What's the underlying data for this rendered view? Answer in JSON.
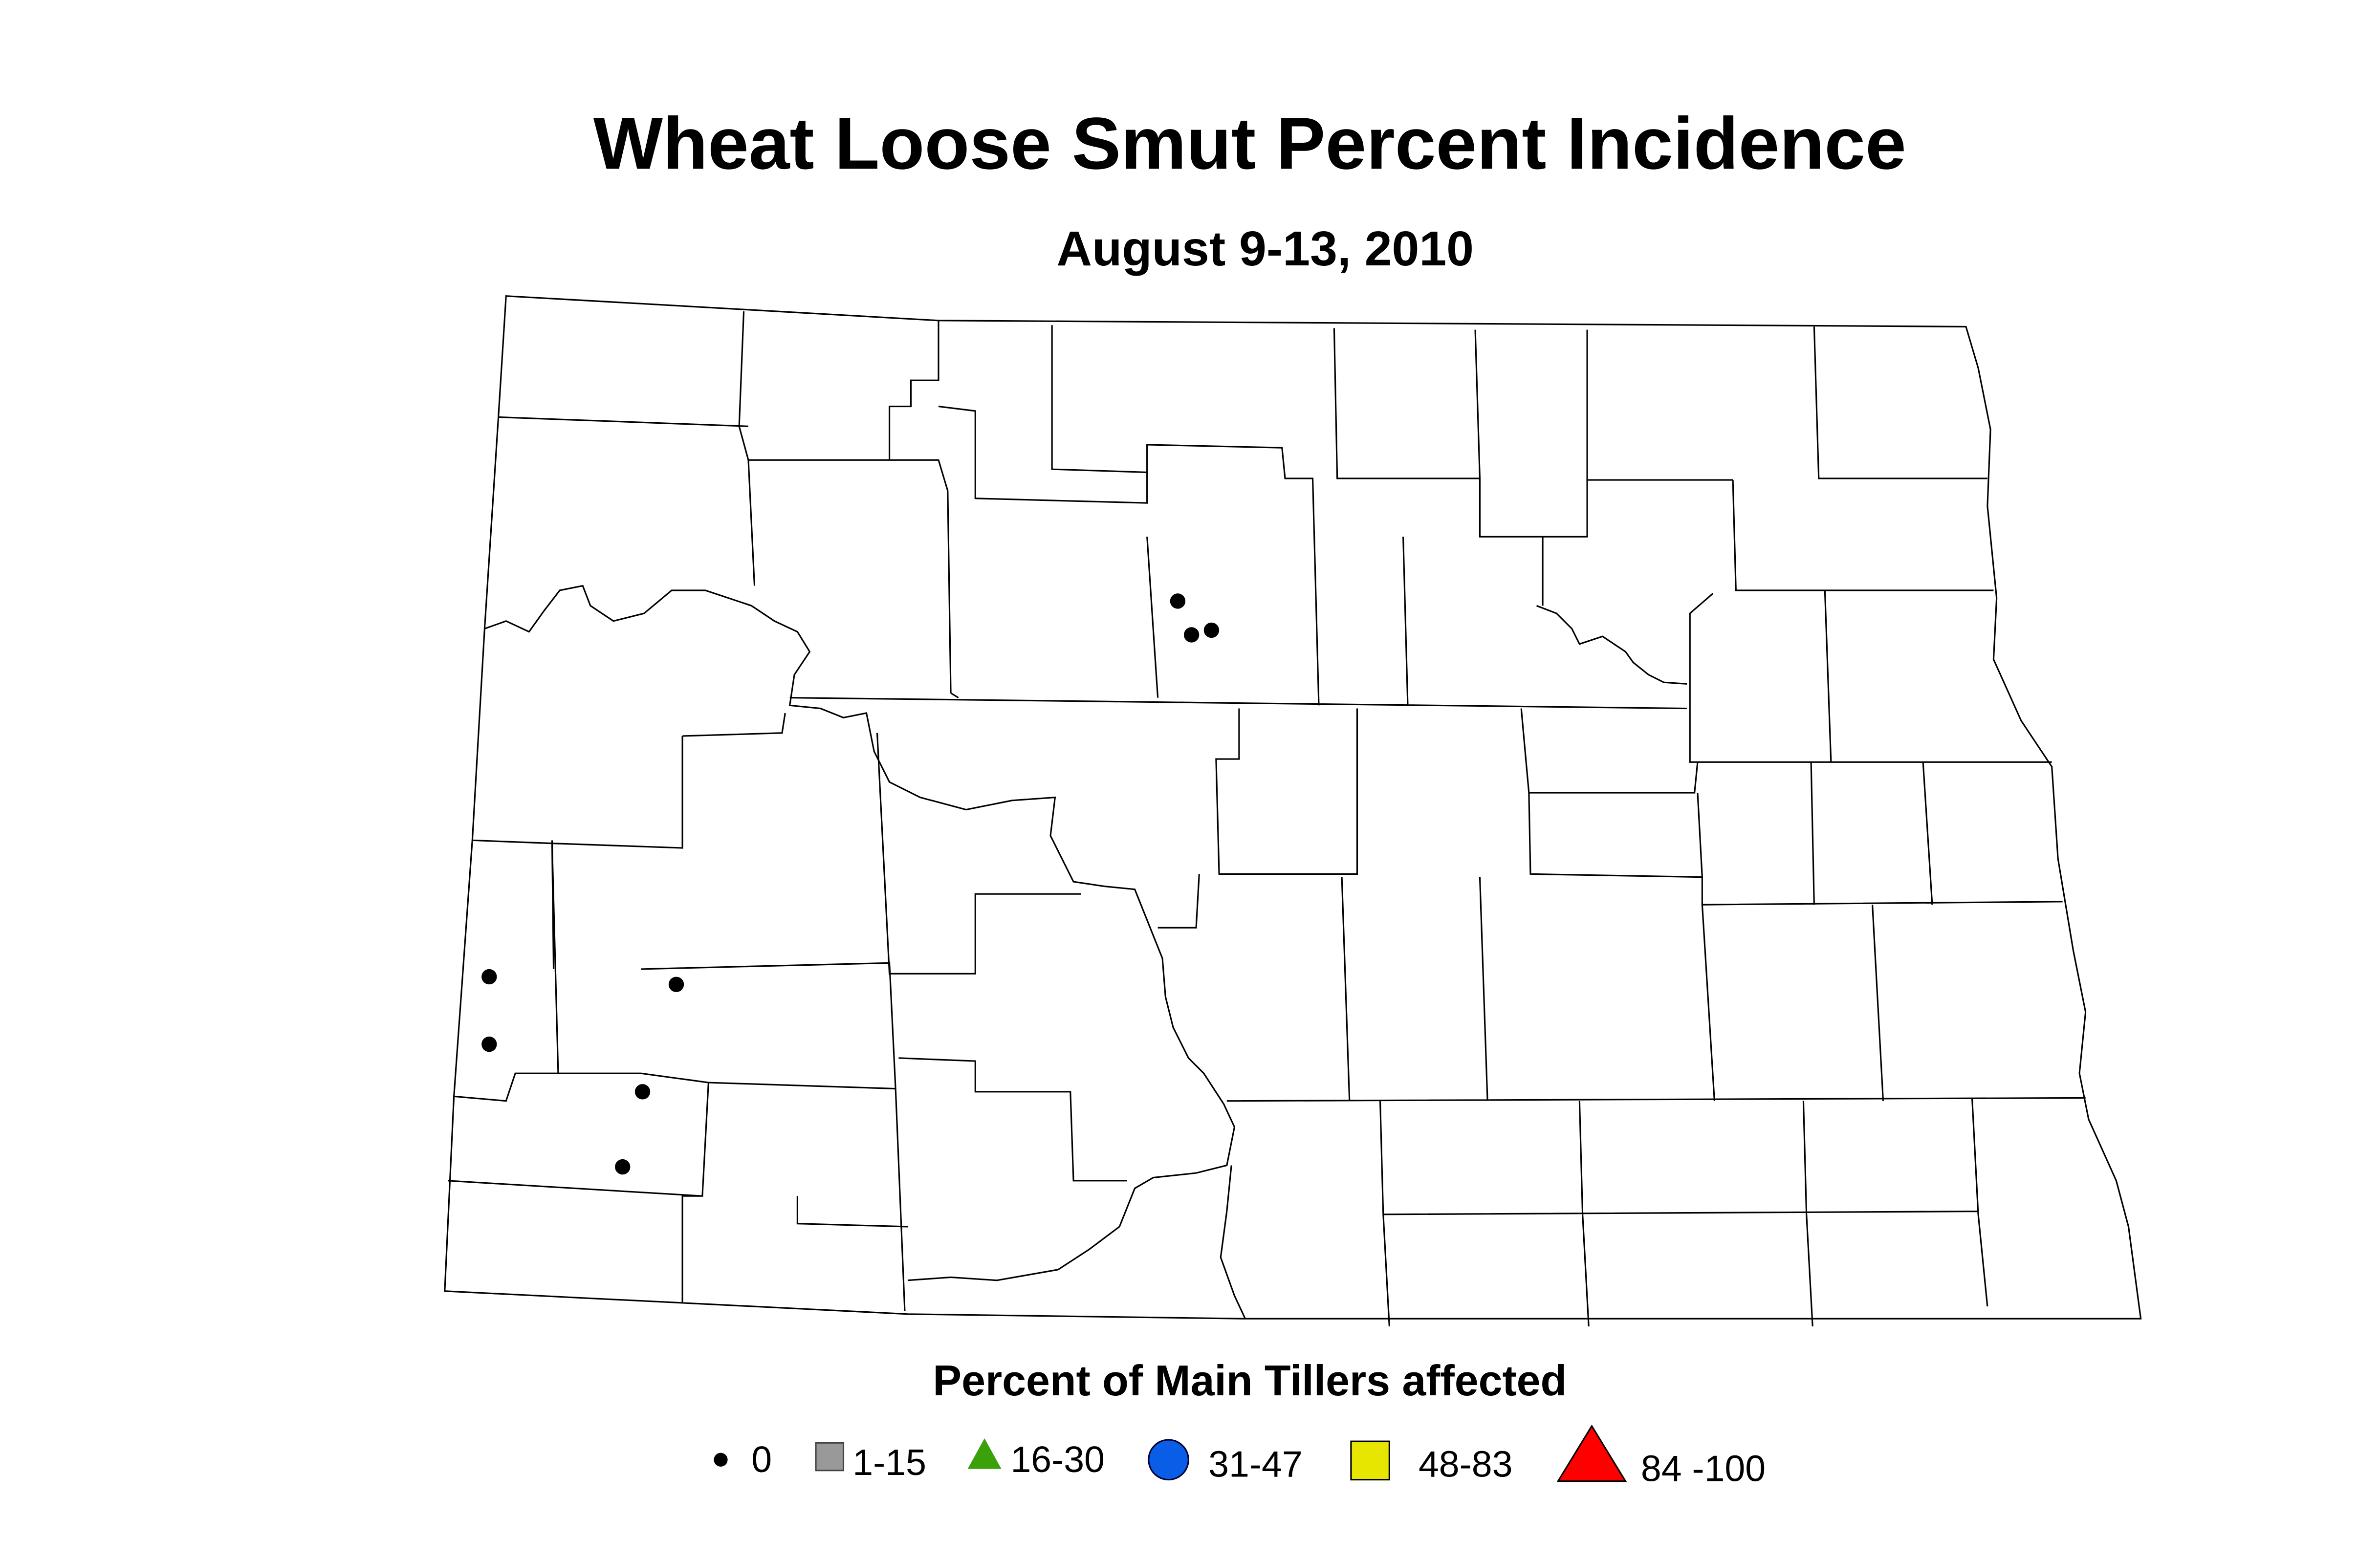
{
  "header": {
    "title": "Wheat Loose Smut Percent Incidence",
    "subtitle": "August 9-13, 2010"
  },
  "legend": {
    "title": "Percent of Main Tillers affected",
    "items": [
      {
        "label": "0"
      },
      {
        "label": "1-15"
      },
      {
        "label": "16-30"
      },
      {
        "label": "31-47"
      },
      {
        "label": "48-83"
      },
      {
        "label": "84 -100"
      }
    ]
  }
}
